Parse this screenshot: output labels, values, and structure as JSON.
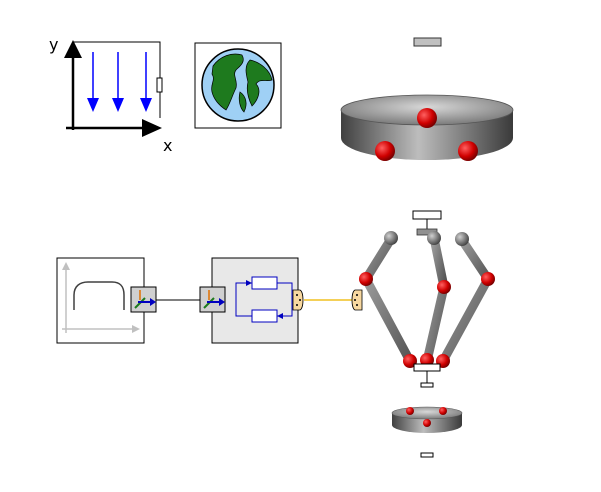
{
  "world": {
    "axis_y_label": "y",
    "axis_x_label": "x",
    "gravity_arrow_color": "#0000ff",
    "icon": "world-gravity-icon"
  },
  "earth": {
    "icon": "earth-icon",
    "ocean_color": "#9fd0f5",
    "land_color": "#1e7a1e"
  },
  "platform_top": {
    "icon": "platform-disc-icon",
    "joint_color": "#e00000"
  },
  "trajectory_block": {
    "icon": "trajectory-curve-icon"
  },
  "controller_block": {
    "icon": "controller-block-icon"
  },
  "connector": {
    "line_color": "#f0c020",
    "plug_color": "#f8d8a0"
  },
  "delta_robot": {
    "icon": "delta-robot-icon",
    "link_color": "#808080",
    "joint_color": "#e00000"
  },
  "platform_bottom": {
    "icon": "platform-small-icon"
  }
}
